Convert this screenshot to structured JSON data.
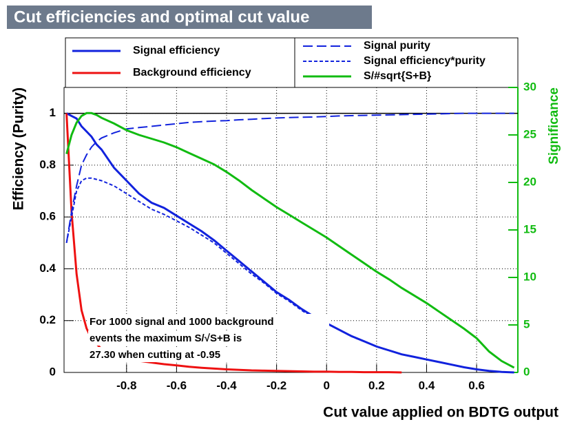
{
  "chart_data": {
    "type": "line",
    "title": "Cut efficiencies and optimal cut value",
    "xlabel": "Cut value applied on BDTG output",
    "ylabel": "Efficiency (Purity)",
    "y2label": "Significance",
    "annotation": [
      "For 1000 signal and 1000 background",
      "events the maximum S/√S+B is",
      "27.30 when cutting at -0.95"
    ],
    "xlim": [
      -1.05,
      0.765
    ],
    "ylim": [
      0,
      1.1
    ],
    "y2lim": [
      0,
      30
    ],
    "xticks": [
      -0.8,
      -0.6,
      -0.4,
      -0.2,
      0,
      0.2,
      0.4,
      0.6
    ],
    "yticks": [
      0,
      0.2,
      0.4,
      0.6,
      0.8,
      1
    ],
    "y2ticks": [
      0,
      5,
      10,
      15,
      20,
      25,
      30
    ],
    "grid": true,
    "y2color": "#11bb11",
    "x": [
      -1.04,
      -1.02,
      -1.0,
      -0.98,
      -0.96,
      -0.94,
      -0.92,
      -0.9,
      -0.85,
      -0.8,
      -0.75,
      -0.7,
      -0.65,
      -0.6,
      -0.55,
      -0.5,
      -0.45,
      -0.4,
      -0.35,
      -0.3,
      -0.25,
      -0.2,
      -0.15,
      -0.1,
      -0.05,
      0,
      0.05,
      0.1,
      0.15,
      0.2,
      0.25,
      0.3,
      0.35,
      0.4,
      0.45,
      0.5,
      0.55,
      0.6,
      0.65,
      0.7,
      0.75
    ],
    "series": [
      {
        "name": "Signal efficiency",
        "color": "#1122dd",
        "style": "solid",
        "width": 3,
        "values": [
          1.0,
          0.99,
          0.98,
          0.95,
          0.93,
          0.91,
          0.88,
          0.86,
          0.79,
          0.74,
          0.69,
          0.655,
          0.635,
          0.605,
          0.575,
          0.545,
          0.51,
          0.47,
          0.43,
          0.39,
          0.35,
          0.31,
          0.28,
          0.245,
          0.215,
          0.19,
          0.165,
          0.14,
          0.12,
          0.1,
          0.085,
          0.07,
          0.06,
          0.05,
          0.04,
          0.03,
          0.02,
          0.012,
          0.006,
          0.002,
          0
        ]
      },
      {
        "name": "Background efficiency",
        "color": "#ee1111",
        "style": "solid",
        "width": 3,
        "values": [
          1.0,
          0.62,
          0.38,
          0.24,
          0.17,
          0.13,
          0.11,
          0.09,
          0.07,
          0.055,
          0.045,
          0.038,
          0.032,
          0.027,
          0.022,
          0.018,
          0.015,
          0.012,
          0.01,
          0.008,
          0.007,
          0.006,
          0.005,
          0.004,
          0.003,
          0.003,
          0.002,
          0.002,
          0.001,
          0.001,
          0.001,
          0,
          null,
          null,
          null,
          null,
          null,
          null,
          null,
          null,
          null
        ]
      },
      {
        "name": "Signal purity",
        "color": "#1122dd",
        "style": "dashed",
        "width": 2,
        "values": [
          0.5,
          0.62,
          0.72,
          0.8,
          0.84,
          0.87,
          0.89,
          0.905,
          0.925,
          0.94,
          0.945,
          0.95,
          0.955,
          0.96,
          0.965,
          0.968,
          0.97,
          0.972,
          0.975,
          0.977,
          0.98,
          0.982,
          0.984,
          0.985,
          0.986,
          0.988,
          0.99,
          0.991,
          0.992,
          0.993,
          0.994,
          0.995,
          0.996,
          0.997,
          0.998,
          0.999,
          1,
          1,
          1,
          1,
          1
        ]
      },
      {
        "name": "Signal efficiency*purity",
        "color": "#1122dd",
        "style": "dotted",
        "width": 2,
        "values": [
          0.5,
          0.6,
          0.7,
          0.74,
          0.75,
          0.75,
          0.745,
          0.74,
          0.72,
          0.69,
          0.66,
          0.63,
          0.61,
          0.585,
          0.56,
          0.53,
          0.5,
          0.46,
          0.42,
          0.38,
          0.345,
          0.305,
          0.275,
          0.24,
          0.21,
          0.19,
          0.164,
          0.139,
          0.119,
          0.1,
          0.085,
          0.07,
          0.06,
          0.05,
          0.04,
          0.03,
          0.02,
          0.012,
          0.006,
          0.002,
          0
        ]
      },
      {
        "name": "S/#sqrt{S+B}",
        "color": "#11bb11",
        "style": "solid",
        "width": 3,
        "axis": "y2",
        "values": [
          23,
          25,
          26.3,
          27,
          27.3,
          27.3,
          27.1,
          26.8,
          26.2,
          25.5,
          25,
          24.6,
          24.2,
          23.7,
          23.1,
          22.5,
          21.9,
          21.1,
          20.2,
          19.2,
          18.3,
          17.4,
          16.6,
          15.8,
          15,
          14.2,
          13.3,
          12.4,
          11.5,
          10.6,
          9.8,
          8.9,
          8.1,
          7.3,
          6.4,
          5.5,
          4.6,
          3.6,
          2.2,
          1.2,
          0.5
        ]
      }
    ]
  }
}
